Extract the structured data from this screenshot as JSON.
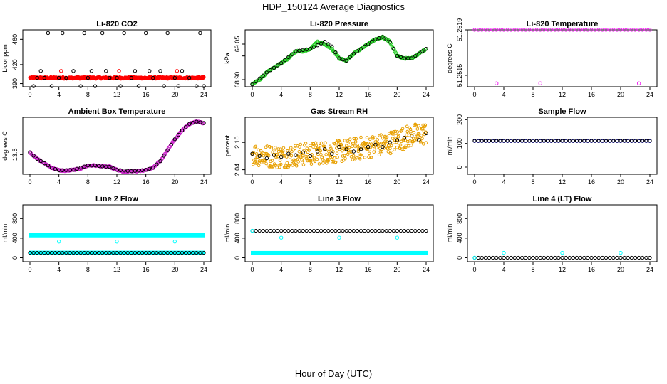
{
  "title": "HDP_150124  Average Diagnostics",
  "xlabel": "Hour of Day (UTC)",
  "xticks": [
    0,
    4,
    8,
    12,
    16,
    20,
    24
  ],
  "chart_data": [
    {
      "type": "scatter",
      "title": "Li-820 CO2",
      "ylabel": "Licor ppm",
      "xlim": [
        0,
        24
      ],
      "ylim": [
        385,
        475
      ],
      "yticks": [
        390,
        420,
        460
      ],
      "series": [
        {
          "name": "CO2 dense",
          "color": "#ff0000",
          "fill": true,
          "pattern": "dense",
          "y0": 399,
          "amp": 1.5
        },
        {
          "name": "CO2 points",
          "color": "#000000",
          "x": [
            0.5,
            1.0,
            1.5,
            2.0,
            2.5,
            3.0,
            4.0,
            4.5,
            5.0,
            6.0,
            7.0,
            7.5,
            8.0,
            8.5,
            9.0,
            10.0,
            10.5,
            11.0,
            12.0,
            12.5,
            13.0,
            14.0,
            14.5,
            15.0,
            16.0,
            16.5,
            17.0,
            18.0,
            18.5,
            19.0,
            20.0,
            20.5,
            21.0,
            22.0,
            23.0,
            23.5,
            24.0
          ],
          "y": [
            386,
            399,
            410,
            399,
            470,
            386,
            399,
            470,
            399,
            410,
            386,
            470,
            399,
            410,
            386,
            470,
            410,
            399,
            399,
            386,
            470,
            399,
            410,
            386,
            470,
            410,
            399,
            410,
            386,
            470,
            399,
            386,
            410,
            399,
            386,
            470,
            386
          ]
        },
        {
          "name": "CO2 red outliers",
          "color": "#ff0000",
          "x": [
            4.3,
            12.3,
            20.3
          ],
          "y": [
            410,
            410,
            410
          ]
        }
      ]
    },
    {
      "type": "scatter",
      "title": "Li-820 Pressure",
      "ylabel": "kPa",
      "xlim": [
        0,
        24
      ],
      "ylim": [
        68.87,
        69.11
      ],
      "yticks": [
        68.9,
        69.0,
        69.05
      ],
      "ytick_labels": [
        "68.90",
        "",
        "69.05"
      ],
      "series": [
        {
          "name": "Pressure dense",
          "color": "#22cc22",
          "pattern": "curve",
          "x": [
            0,
            1,
            2,
            3,
            4,
            5,
            6,
            7,
            8,
            9,
            10,
            11,
            12,
            13,
            14,
            15,
            16,
            17,
            18,
            19,
            20,
            21,
            22,
            23,
            24
          ],
          "y": [
            68.88,
            68.9,
            68.93,
            68.95,
            68.97,
            68.99,
            69.02,
            69.02,
            69.03,
            69.06,
            69.05,
            69.03,
            68.99,
            68.98,
            69.01,
            69.03,
            69.05,
            69.07,
            69.08,
            69.06,
            69.0,
            68.99,
            68.99,
            69.01,
            69.03
          ]
        },
        {
          "name": "Pressure points",
          "color": "#000000",
          "sparse": true,
          "x": [
            0,
            2,
            4,
            6,
            8,
            10,
            11,
            12,
            13,
            14,
            16,
            17,
            18,
            19,
            20,
            21,
            22,
            23,
            24
          ],
          "y": [
            68.88,
            68.93,
            68.97,
            69.02,
            69.03,
            69.06,
            69.04,
            68.99,
            68.98,
            69.01,
            69.05,
            69.07,
            69.08,
            69.06,
            69.0,
            68.99,
            68.99,
            69.01,
            69.03
          ]
        }
      ]
    },
    {
      "type": "scatter",
      "title": "Li-820 Temperature",
      "ylabel": "degrees C",
      "xlim": [
        0,
        24
      ],
      "ylim": [
        51.2514,
        51.2519
      ],
      "yticks": [
        51.2515,
        51.2519
      ],
      "ytick_labels": [
        "51.2515",
        "51.2519"
      ],
      "series": [
        {
          "name": "Temp flat",
          "color": "#ee22ee",
          "flat": 51.2519
        },
        {
          "name": "Temp low",
          "color": "#ee22ee",
          "x": [
            3,
            9,
            22.5
          ],
          "y": [
            51.25143,
            51.25143,
            51.25143
          ]
        }
      ]
    },
    {
      "type": "scatter",
      "title": "Ambient Box Temperature",
      "ylabel": "degrees C",
      "xlim": [
        0,
        24
      ],
      "ylim": [
        13.05,
        14.35
      ],
      "yticks": [
        13.5
      ],
      "ytick_labels": [
        "13.5"
      ],
      "series": [
        {
          "name": "Ambient dense",
          "color": "#cc22cc",
          "pattern": "curve",
          "x": [
            0,
            1,
            2,
            3,
            4,
            5,
            6,
            7,
            8,
            9,
            10,
            11,
            12,
            13,
            14,
            15,
            16,
            17,
            18,
            19,
            20,
            21,
            22,
            23,
            24
          ],
          "y": [
            13.55,
            13.4,
            13.3,
            13.2,
            13.14,
            13.13,
            13.15,
            13.18,
            13.25,
            13.25,
            13.23,
            13.22,
            13.15,
            13.1,
            13.12,
            13.12,
            13.15,
            13.2,
            13.35,
            13.6,
            13.85,
            14.05,
            14.2,
            14.25,
            14.22
          ]
        },
        {
          "name": "Ambient points",
          "color": "#000000",
          "sparse": true,
          "x": [
            0,
            1,
            2,
            3,
            4,
            6,
            8,
            9,
            10,
            11,
            12,
            14,
            16,
            17,
            18,
            19,
            20,
            21,
            22,
            23,
            24
          ],
          "y": [
            13.55,
            13.4,
            13.3,
            13.2,
            13.14,
            13.15,
            13.25,
            13.25,
            13.23,
            13.22,
            13.15,
            13.12,
            13.15,
            13.2,
            13.35,
            13.6,
            13.85,
            14.05,
            14.2,
            14.25,
            14.22
          ]
        }
      ]
    },
    {
      "type": "scatter",
      "title": "Gas Stream RH",
      "ylabel": "percent",
      "xlim": [
        0,
        24
      ],
      "ylim": [
        2.03,
        2.155
      ],
      "yticks": [
        2.04,
        2.1
      ],
      "ytick_labels": [
        "2.04",
        "2.10"
      ],
      "series": [
        {
          "name": "RH noisy",
          "color": "#e8a000",
          "pattern": "noisy",
          "x": [
            0,
            2,
            4,
            6,
            8,
            10,
            12,
            14,
            16,
            18,
            20,
            22,
            24
          ],
          "y": [
            2.075,
            2.07,
            2.068,
            2.072,
            2.075,
            2.078,
            2.08,
            2.085,
            2.09,
            2.095,
            2.105,
            2.115,
            2.12
          ],
          "spread": 0.025
        },
        {
          "name": "RH points",
          "color": "#000000",
          "x": [
            0,
            1,
            2,
            3,
            4,
            5,
            6,
            7,
            8,
            9,
            10,
            11,
            12,
            13,
            14,
            15,
            16,
            17,
            18,
            19,
            20,
            21,
            22,
            23,
            24
          ],
          "y": [
            2.075,
            2.07,
            2.065,
            2.072,
            2.068,
            2.075,
            2.072,
            2.078,
            2.07,
            2.08,
            2.085,
            2.075,
            2.09,
            2.085,
            2.08,
            2.085,
            2.09,
            2.095,
            2.09,
            2.1,
            2.105,
            2.11,
            2.115,
            2.105,
            2.12
          ]
        }
      ]
    },
    {
      "type": "scatter",
      "title": "Sample Flow",
      "ylabel": "ml/min",
      "xlim": [
        0,
        24
      ],
      "ylim": [
        -30,
        210
      ],
      "yticks": [
        0,
        100,
        200
      ],
      "series": [
        {
          "name": "Sample flat",
          "color": "#000080",
          "flat": 110
        },
        {
          "name": "Sample points",
          "color": "#000000",
          "flat": 112
        }
      ]
    },
    {
      "type": "scatter",
      "title": "Line 2 Flow",
      "ylabel": "ml/min",
      "xlim": [
        0,
        24
      ],
      "ylim": [
        -80,
        1080
      ],
      "yticks": [
        0,
        400,
        800
      ],
      "series": [
        {
          "name": "Line2 high",
          "color": "#00ffff",
          "flat": 460,
          "thick": true
        },
        {
          "name": "Line2 low cyan",
          "color": "#00ffff",
          "flat": 100,
          "thick": true
        },
        {
          "name": "Line2 low",
          "color": "#000000",
          "flat": 100
        },
        {
          "name": "Line2 outliers",
          "color": "#00ffff",
          "x": [
            4,
            12,
            20
          ],
          "y": [
            330,
            330,
            330
          ]
        }
      ]
    },
    {
      "type": "scatter",
      "title": "Line 3 Flow",
      "ylabel": "ml/min",
      "xlim": [
        0,
        24
      ],
      "ylim": [
        -80,
        1080
      ],
      "yticks": [
        0,
        400,
        800
      ],
      "series": [
        {
          "name": "Line3 high",
          "color": "#000000",
          "flat": 550
        },
        {
          "name": "Line3 low",
          "color": "#00ffff",
          "flat": 95,
          "thick": true
        },
        {
          "name": "Line3 outliers",
          "color": "#00ffff",
          "x": [
            0,
            4,
            12,
            20
          ],
          "y": [
            550,
            410,
            410,
            410
          ]
        }
      ]
    },
    {
      "type": "scatter",
      "title": "Line 4 (LT) Flow",
      "ylabel": "ml/min",
      "xlim": [
        0,
        24
      ],
      "ylim": [
        -80,
        1080
      ],
      "yticks": [
        0,
        400,
        800
      ],
      "series": [
        {
          "name": "Line4 flat",
          "color": "#000000",
          "flat": 0
        },
        {
          "name": "Line4 outliers",
          "color": "#00ffff",
          "x": [
            0,
            4,
            12,
            20
          ],
          "y": [
            0,
            100,
            100,
            100
          ]
        }
      ]
    }
  ]
}
